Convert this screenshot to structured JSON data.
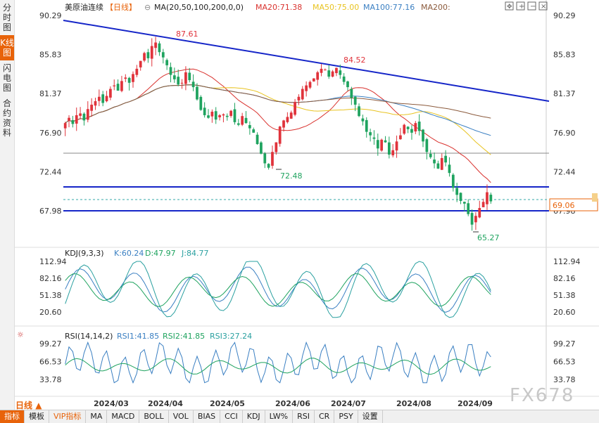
{
  "left_tabs": [
    "分时图",
    "K线图",
    "闪电图",
    "合约资料"
  ],
  "active_tab_index": 1,
  "main_legend": {
    "symbol": "美原油连续",
    "period": "【日线】",
    "ma_params": "MA(20,50,100,200,0,0)",
    "ma20": "MA20:71.38",
    "ma50": "MA50:75.00",
    "ma100": "MA100:77.16",
    "ma200": "MA200:"
  },
  "colors": {
    "up": "#e0333b",
    "down": "#1fa35f",
    "ma20": "#d9322e",
    "ma50": "#e8c320",
    "ma100": "#3a7fc2",
    "ma200": "#8b5a3c",
    "trend": "#1525c8",
    "accent": "#e8630a",
    "current_price_box": "#e8630a"
  },
  "price_axis": {
    "ticks": [
      "90.29",
      "85.83",
      "81.37",
      "76.90",
      "72.44",
      "67.98"
    ],
    "values": [
      90.29,
      85.83,
      81.37,
      76.9,
      72.44,
      67.98
    ]
  },
  "annotations": {
    "high1": "87.61",
    "high2": "84.52",
    "low1": "72.48",
    "low2": "65.27",
    "current_price": "69.06"
  },
  "kdj_legend": {
    "name": "KDJ(9,3,3)",
    "k": "K:60.24",
    "d": "D:47.97",
    "j": "J:84.77"
  },
  "kdj_axis": [
    "112.94",
    "82.16",
    "51.38",
    "20.60"
  ],
  "rsi_legend": {
    "name": "RSI(14,14,2)",
    "rsi1": "RSI1:41.85",
    "rsi2": "RSI2:41.85",
    "rsi3": "RSI3:27.24"
  },
  "rsi_axis": [
    "99.27",
    "66.53",
    "33.78"
  ],
  "dates": [
    "2024/03",
    "2024/04",
    "2024/05",
    "2024/06",
    "2024/07",
    "2024/08",
    "2024/09"
  ],
  "period_label": "日线",
  "bottom_tabs": [
    "指标",
    "模板",
    "VIP指标",
    "MA",
    "MACD",
    "BOLL",
    "VOL",
    "BIAS",
    "CCI",
    "KDJ",
    "LW%",
    "RSI",
    "CR",
    "PSY",
    "设置"
  ],
  "watermark": "FX678",
  "chart_data": {
    "type": "candlestick",
    "y_range": [
      65.0,
      91.0
    ],
    "closes": [
      78.0,
      78.6,
      77.9,
      78.9,
      79.1,
      78.3,
      79.6,
      80.1,
      80.5,
      81.0,
      80.3,
      81.1,
      81.9,
      82.3,
      81.7,
      82.8,
      83.2,
      82.6,
      83.6,
      84.2,
      85.1,
      86.0,
      85.4,
      86.8,
      87.2,
      86.1,
      85.5,
      84.6,
      83.5,
      83.0,
      82.4,
      82.6,
      83.8,
      82.9,
      82.1,
      80.7,
      79.5,
      78.9,
      78.6,
      79.3,
      78.4,
      78.9,
      79.0,
      78.7,
      79.4,
      78.1,
      77.8,
      78.8,
      78.0,
      77.4,
      76.9,
      75.6,
      74.5,
      73.4,
      72.9,
      74.7,
      75.8,
      77.6,
      78.3,
      78.7,
      79.2,
      80.4,
      81.0,
      81.9,
      82.3,
      82.7,
      83.1,
      83.8,
      84.2,
      84.1,
      83.3,
      83.9,
      84.3,
      83.5,
      82.7,
      82.1,
      80.9,
      80.1,
      78.8,
      78.2,
      77.0,
      76.6,
      76.2,
      75.1,
      76.1,
      75.8,
      74.4,
      74.9,
      75.9,
      76.6,
      77.8,
      77.3,
      76.9,
      78.0,
      77.1,
      75.9,
      74.7,
      74.1,
      73.4,
      72.8,
      74.0,
      73.5,
      72.3,
      70.6,
      69.8,
      69.1,
      68.8,
      67.6,
      66.4,
      67.4,
      68.3,
      69.0,
      70.1,
      69.06
    ]
  }
}
